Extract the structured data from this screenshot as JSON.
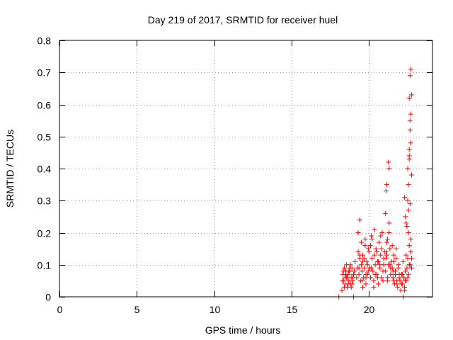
{
  "chart_data": {
    "type": "scatter",
    "title": "Day 219 of 2017, SRMTID for receiver huel",
    "xlabel": "GPS time / hours",
    "ylabel": "SRMTID / TECUs",
    "xlim": [
      0,
      24.1
    ],
    "ylim": [
      0,
      0.8
    ],
    "xticks": [
      0,
      5,
      10,
      15,
      20
    ],
    "xtick_labels": [
      "0",
      "5",
      "10",
      "15",
      "20"
    ],
    "yticks": [
      0,
      0.1,
      0.2,
      0.3,
      0.4,
      0.5,
      0.6,
      0.7,
      0.8
    ],
    "ytick_labels": [
      "0",
      "0.1",
      "0.2",
      "0.3",
      "0.4",
      "0.5",
      "0.6",
      "0.7",
      "0.8"
    ],
    "grid": true,
    "marker": "plus",
    "marker_color": "#ff0000",
    "series": [
      {
        "name": "SRMTID",
        "x": [
          18.05,
          18.3,
          18.35,
          18.4,
          18.45,
          18.5,
          18.55,
          18.6,
          18.65,
          18.7,
          18.75,
          18.8,
          18.85,
          18.9,
          18.95,
          19.0,
          18.25,
          18.35,
          18.45,
          18.55,
          18.65,
          18.75,
          18.85,
          18.95,
          18.3,
          18.5,
          18.7,
          18.9,
          18.4,
          18.6,
          18.8,
          19.0,
          19.05,
          19.1,
          19.2,
          19.25,
          19.3,
          19.35,
          19.4,
          19.45,
          19.5,
          19.55,
          19.6,
          19.65,
          19.7,
          19.75,
          19.8,
          19.85,
          19.9,
          19.95,
          19.3,
          19.4,
          19.5,
          19.6,
          19.7,
          19.8,
          19.9,
          19.35,
          19.55,
          19.75,
          19.95,
          19.4,
          19.6,
          19.8,
          20.0,
          20.05,
          20.1,
          20.15,
          20.2,
          20.25,
          20.3,
          20.35,
          20.4,
          20.45,
          20.5,
          20.55,
          20.6,
          20.65,
          20.7,
          20.75,
          20.8,
          20.85,
          20.9,
          20.95,
          20.1,
          20.3,
          20.5,
          20.7,
          20.9,
          20.2,
          20.4,
          20.6,
          20.8,
          20.15,
          20.35,
          20.55,
          20.75,
          20.95,
          21.0,
          21.05,
          21.1,
          21.15,
          21.2,
          21.25,
          21.3,
          21.35,
          21.4,
          21.45,
          21.5,
          21.55,
          21.6,
          21.65,
          21.7,
          21.75,
          21.8,
          21.85,
          21.9,
          21.95,
          21.1,
          21.2,
          21.3,
          21.4,
          21.5,
          21.6,
          21.7,
          21.8,
          21.9,
          21.15,
          21.35,
          21.55,
          21.75,
          21.95,
          21.2,
          21.6,
          21.05,
          21.1,
          21.15,
          21.25,
          21.3,
          22.0,
          22.05,
          22.1,
          22.15,
          22.2,
          22.25,
          22.3,
          22.35,
          22.4,
          22.45,
          22.5,
          22.55,
          22.6,
          22.65,
          22.7,
          22.75,
          22.1,
          22.2,
          22.3,
          22.4,
          22.5,
          22.6,
          22.7,
          22.15,
          22.35,
          22.55,
          22.75,
          22.3,
          22.35,
          22.4,
          22.45,
          22.5,
          22.5,
          22.55,
          22.6,
          22.6,
          22.65,
          22.65,
          22.7,
          22.7,
          22.75,
          22.75,
          22.6,
          22.65,
          22.7,
          22.55,
          22.6,
          22.65
        ],
        "y": [
          0.0,
          0.07,
          0.05,
          0.09,
          0.04,
          0.08,
          0.06,
          0.03,
          0.07,
          0.05,
          0.08,
          0.04,
          0.06,
          0.09,
          0.05,
          0.07,
          0.02,
          0.08,
          0.06,
          0.1,
          0.04,
          0.09,
          0.03,
          0.06,
          0.05,
          0.07,
          0.08,
          0.04,
          0.03,
          0.06,
          0.1,
          0.0,
          0.08,
          0.11,
          0.06,
          0.09,
          0.14,
          0.07,
          0.12,
          0.05,
          0.1,
          0.08,
          0.13,
          0.06,
          0.09,
          0.16,
          0.04,
          0.11,
          0.07,
          0.15,
          0.2,
          0.24,
          0.17,
          0.03,
          0.12,
          0.06,
          0.1,
          0.09,
          0.05,
          0.18,
          0.08,
          0.13,
          0.11,
          0.07,
          0.14,
          0.09,
          0.06,
          0.19,
          0.12,
          0.08,
          0.05,
          0.21,
          0.1,
          0.15,
          0.07,
          0.11,
          0.04,
          0.17,
          0.09,
          0.13,
          0.06,
          0.2,
          0.08,
          0.12,
          0.16,
          0.03,
          0.14,
          0.1,
          0.05,
          0.18,
          0.07,
          0.11,
          0.15,
          0.09,
          0.13,
          0.06,
          0.19,
          0.1,
          0.14,
          0.08,
          0.12,
          0.17,
          0.05,
          0.1,
          0.23,
          0.15,
          0.07,
          0.11,
          0.09,
          0.06,
          0.13,
          0.04,
          0.08,
          0.12,
          0.05,
          0.03,
          0.1,
          0.07,
          0.14,
          0.06,
          0.2,
          0.09,
          0.16,
          0.11,
          0.07,
          0.04,
          0.09,
          0.13,
          0.1,
          0.08,
          0.15,
          0.06,
          0.18,
          0.05,
          0.26,
          0.33,
          0.35,
          0.42,
          0.4,
          0.05,
          0.02,
          0.07,
          0.04,
          0.0,
          0.06,
          0.03,
          0.08,
          0.05,
          0.09,
          0.12,
          0.07,
          0.16,
          0.1,
          0.14,
          0.09,
          0.04,
          0.11,
          0.02,
          0.13,
          0.06,
          0.1,
          0.18,
          0.07,
          0.05,
          0.2,
          0.12,
          0.31,
          0.25,
          0.23,
          0.22,
          0.3,
          0.4,
          0.35,
          0.46,
          0.43,
          0.55,
          0.52,
          0.57,
          0.48,
          0.63,
          0.38,
          0.62,
          0.69,
          0.71,
          0.27,
          0.44,
          0.29
        ]
      }
    ]
  }
}
